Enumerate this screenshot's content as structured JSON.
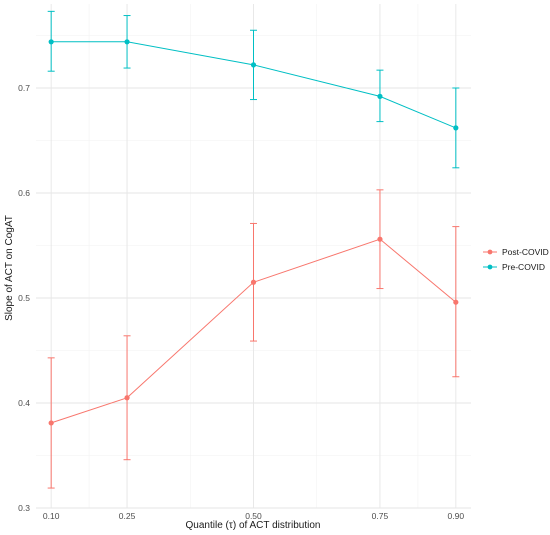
{
  "chart_data": {
    "type": "line",
    "title": "",
    "xlabel": "Quantile (τ) of ACT distribution",
    "ylabel": "Slope of ACT on CogAT",
    "x": [
      0.1,
      0.25,
      0.5,
      0.75,
      0.9
    ],
    "x_tick_labels": [
      "0.10",
      "0.25",
      "0.50",
      "0.75",
      "0.90"
    ],
    "xlim": [
      0.07,
      0.93
    ],
    "ylim": [
      0.3,
      0.78
    ],
    "y_ticks": [
      0.3,
      0.4,
      0.5,
      0.6,
      0.7
    ],
    "y_tick_labels": [
      "0.3",
      "0.4",
      "0.5",
      "0.6",
      "0.7"
    ],
    "grid": true,
    "legend_position": "right",
    "series": [
      {
        "name": "Post-COVID",
        "color": "#F8766D",
        "values": [
          0.381,
          0.405,
          0.515,
          0.556,
          0.496
        ],
        "lower": [
          0.319,
          0.346,
          0.459,
          0.509,
          0.425
        ],
        "upper": [
          0.443,
          0.464,
          0.571,
          0.603,
          0.568
        ]
      },
      {
        "name": "Pre-COVID",
        "color": "#00BFC4",
        "values": [
          0.744,
          0.744,
          0.722,
          0.692,
          0.662
        ],
        "lower": [
          0.716,
          0.719,
          0.689,
          0.668,
          0.624
        ],
        "upper": [
          0.773,
          0.769,
          0.755,
          0.717,
          0.7
        ]
      }
    ]
  }
}
